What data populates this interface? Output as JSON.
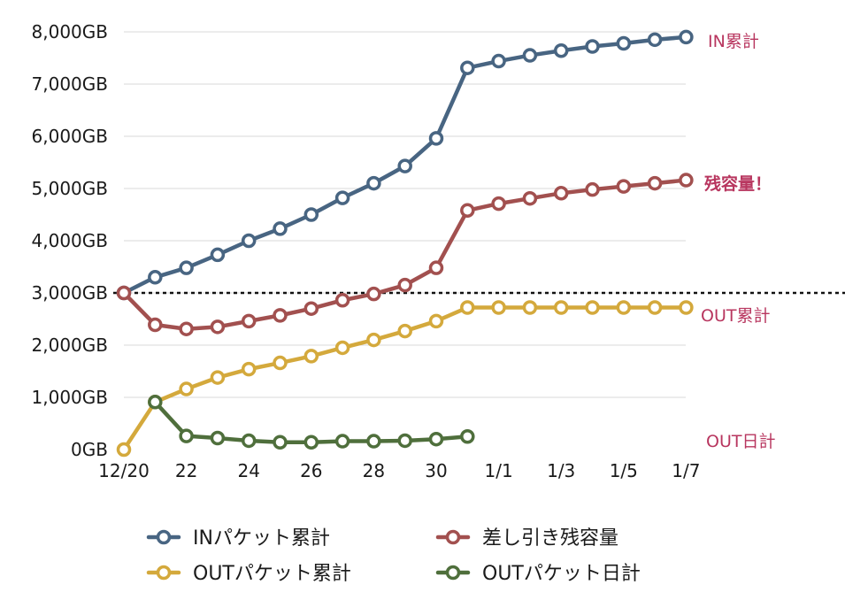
{
  "chart_data": {
    "type": "line",
    "x": [
      "12/20",
      "12/21",
      "12/22",
      "12/23",
      "12/24",
      "12/25",
      "12/26",
      "12/27",
      "12/28",
      "12/29",
      "12/30",
      "12/31",
      "1/1",
      "1/2",
      "1/3",
      "1/4",
      "1/5",
      "1/6",
      "1/7"
    ],
    "x_tick_labels": [
      "12/20",
      "22",
      "24",
      "26",
      "28",
      "30",
      "1/1",
      "1/3",
      "1/5",
      "1/7"
    ],
    "y_tick_labels": [
      "0GB",
      "1,000GB",
      "2,000GB",
      "3,000GB",
      "4,000GB",
      "5,000GB",
      "6,000GB",
      "7,000GB",
      "8,000GB"
    ],
    "ylim": [
      0,
      8000
    ],
    "y_unit": "GB",
    "reference_line": {
      "value": 3000,
      "style": "dotted"
    },
    "series": [
      {
        "name": "INパケット累計",
        "label": "IN累計",
        "color": "#486582",
        "values": [
          3000,
          3300,
          3480,
          3730,
          4000,
          4230,
          4500,
          4820,
          5100,
          5430,
          5960,
          7310,
          7440,
          7550,
          7640,
          7720,
          7780,
          7850,
          7900
        ]
      },
      {
        "name": "差し引き残容量",
        "label": "残容量！",
        "color": "#a2504f",
        "values": [
          3000,
          2390,
          2310,
          2350,
          2460,
          2570,
          2700,
          2860,
          2980,
          3150,
          3480,
          4580,
          4710,
          4810,
          4910,
          4980,
          5040,
          5100,
          5160
        ]
      },
      {
        "name": "OUTパケット累計",
        "label": "OUT累計",
        "color": "#d4a93c",
        "values": [
          0,
          910,
          1160,
          1380,
          1540,
          1660,
          1790,
          1950,
          2100,
          2270,
          2460,
          2720,
          2720,
          2720,
          2720,
          2720,
          2720,
          2720,
          2720
        ]
      },
      {
        "name": "OUTパケット日計",
        "label": "OUT日計",
        "color": "#4f6f3c",
        "values": [
          null,
          910,
          260,
          220,
          170,
          140,
          140,
          160,
          160,
          170,
          200,
          250,
          null,
          null,
          null,
          null,
          null,
          null,
          null
        ]
      }
    ],
    "annotation_color": "#b8365f"
  }
}
